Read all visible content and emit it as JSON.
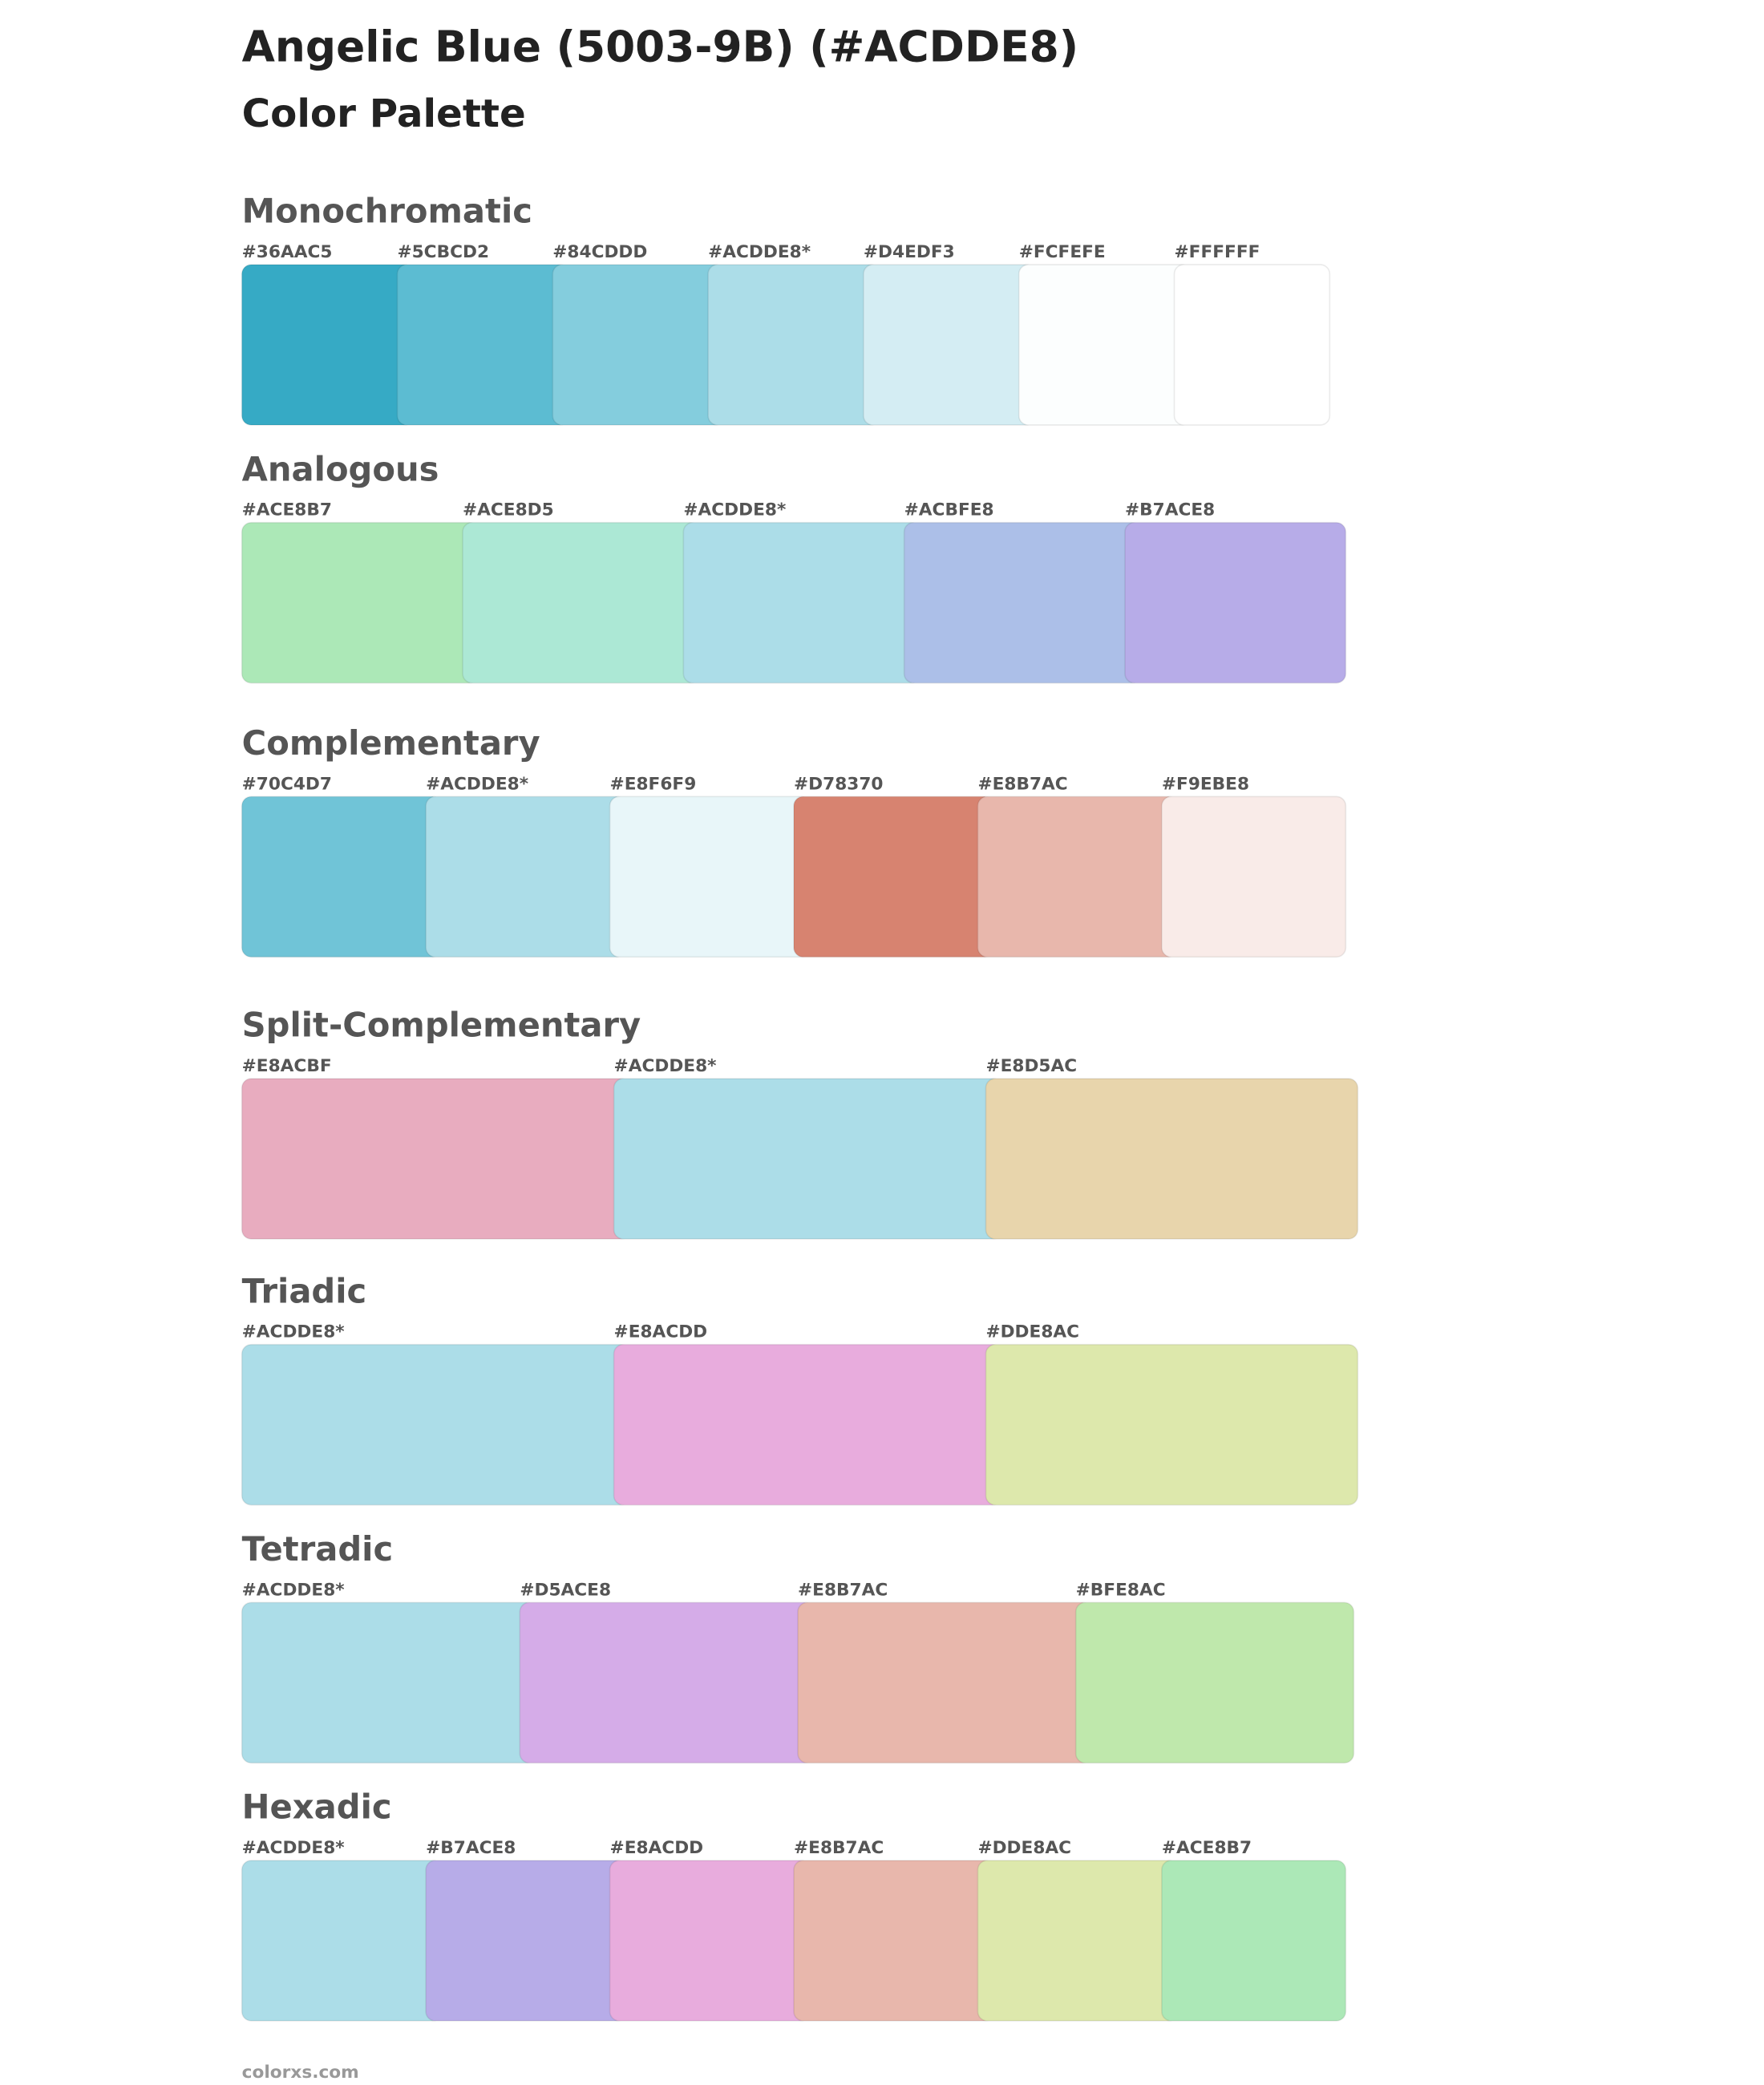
{
  "header": {
    "title": "Angelic Blue (5003-9B) (#ACDDE8)",
    "subtitle": "Color Palette"
  },
  "sections": [
    {
      "title": "Monochromatic",
      "swatches": [
        {
          "label": "#36AAC5",
          "color": "#36AAC5"
        },
        {
          "label": "#5CBCD2",
          "color": "#5CBCD2"
        },
        {
          "label": "#84CDDD",
          "color": "#84CDDD"
        },
        {
          "label": "#ACDDE8*",
          "color": "#ACDDE8"
        },
        {
          "label": "#D4EDF3",
          "color": "#D4EDF3"
        },
        {
          "label": "#FCFEFE",
          "color": "#FCFEFE"
        },
        {
          "label": "#FFFFFF",
          "color": "#FFFFFF"
        }
      ]
    },
    {
      "title": "Analogous",
      "swatches": [
        {
          "label": "#ACE8B7",
          "color": "#ACE8B7"
        },
        {
          "label": "#ACE8D5",
          "color": "#ACE8D5"
        },
        {
          "label": "#ACDDE8*",
          "color": "#ACDDE8"
        },
        {
          "label": "#ACBFE8",
          "color": "#ACBFE8"
        },
        {
          "label": "#B7ACE8",
          "color": "#B7ACE8"
        }
      ]
    },
    {
      "title": "Complementary",
      "swatches": [
        {
          "label": "#70C4D7",
          "color": "#70C4D7"
        },
        {
          "label": "#ACDDE8*",
          "color": "#ACDDE8"
        },
        {
          "label": "#E8F6F9",
          "color": "#E8F6F9"
        },
        {
          "label": "#D78370",
          "color": "#D78370"
        },
        {
          "label": "#E8B7AC",
          "color": "#E8B7AC"
        },
        {
          "label": "#F9EBE8",
          "color": "#F9EBE8"
        }
      ]
    },
    {
      "title": "Split-Complementary",
      "swatches": [
        {
          "label": "#E8ACBF",
          "color": "#E8ACBF"
        },
        {
          "label": "#ACDDE8*",
          "color": "#ACDDE8"
        },
        {
          "label": "#E8D5AC",
          "color": "#E8D5AC"
        }
      ]
    },
    {
      "title": "Triadic",
      "swatches": [
        {
          "label": "#ACDDE8*",
          "color": "#ACDDE8"
        },
        {
          "label": "#E8ACDD",
          "color": "#E8ACDD"
        },
        {
          "label": "#DDE8AC",
          "color": "#DDE8AC"
        }
      ]
    },
    {
      "title": "Tetradic",
      "swatches": [
        {
          "label": "#ACDDE8*",
          "color": "#ACDDE8"
        },
        {
          "label": "#D5ACE8",
          "color": "#D5ACE8"
        },
        {
          "label": "#E8B7AC",
          "color": "#E8B7AC"
        },
        {
          "label": "#BFE8AC",
          "color": "#BFE8AC"
        }
      ]
    },
    {
      "title": "Hexadic",
      "swatches": [
        {
          "label": "#ACDDE8*",
          "color": "#ACDDE8"
        },
        {
          "label": "#B7ACE8",
          "color": "#B7ACE8"
        },
        {
          "label": "#E8ACDD",
          "color": "#E8ACDD"
        },
        {
          "label": "#E8B7AC",
          "color": "#E8B7AC"
        },
        {
          "label": "#DDE8AC",
          "color": "#DDE8AC"
        },
        {
          "label": "#ACE8B7",
          "color": "#ACE8B7"
        }
      ]
    }
  ],
  "footer": "colorxs.com"
}
